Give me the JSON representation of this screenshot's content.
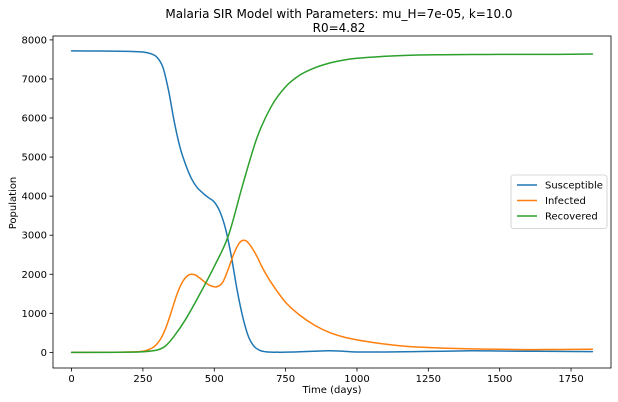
{
  "chart_data": {
    "type": "line",
    "title": "Malaria SIR Model with Parameters: mu_H=7e-05, k=10.0",
    "subtitle": "R0=4.82",
    "xlabel": "Time (days)",
    "ylabel": "Population",
    "xlim": [
      -65,
      1890
    ],
    "ylim": [
      -400,
      8100
    ],
    "xticks": [
      0,
      250,
      500,
      750,
      1000,
      1250,
      1500,
      1750
    ],
    "yticks": [
      0,
      1000,
      2000,
      3000,
      4000,
      5000,
      6000,
      7000,
      8000
    ],
    "grid": false,
    "legend_position": "center-right",
    "series": [
      {
        "name": "Susceptible",
        "color": "#1f77b4",
        "x": [
          0,
          100,
          200,
          250,
          280,
          300,
          320,
          340,
          360,
          380,
          400,
          420,
          440,
          460,
          480,
          500,
          520,
          540,
          560,
          580,
          600,
          620,
          640,
          660,
          680,
          700,
          720,
          750,
          800,
          850,
          900,
          950,
          1000,
          1100,
          1200,
          1300,
          1400,
          1500,
          1600,
          1700,
          1825
        ],
        "values": [
          7720,
          7715,
          7705,
          7690,
          7640,
          7550,
          7300,
          6700,
          5900,
          5250,
          4800,
          4450,
          4220,
          4080,
          3960,
          3850,
          3600,
          3150,
          2450,
          1600,
          900,
          400,
          150,
          50,
          15,
          5,
          5,
          5,
          15,
          30,
          40,
          30,
          10,
          10,
          20,
          30,
          40,
          35,
          30,
          25,
          20
        ]
      },
      {
        "name": "Infected",
        "color": "#ff7f0e",
        "x": [
          0,
          100,
          200,
          250,
          270,
          290,
          310,
          330,
          350,
          370,
          390,
          410,
          430,
          450,
          470,
          490,
          510,
          530,
          550,
          570,
          590,
          610,
          630,
          650,
          670,
          700,
          750,
          800,
          850,
          900,
          950,
          1000,
          1050,
          1100,
          1150,
          1200,
          1300,
          1400,
          1500,
          1600,
          1700,
          1825
        ],
        "values": [
          0,
          2,
          10,
          30,
          70,
          150,
          320,
          620,
          1050,
          1500,
          1820,
          1980,
          1990,
          1900,
          1780,
          1700,
          1680,
          1800,
          2150,
          2550,
          2820,
          2860,
          2700,
          2450,
          2150,
          1780,
          1280,
          950,
          700,
          520,
          400,
          320,
          260,
          210,
          170,
          140,
          110,
          90,
          80,
          70,
          75,
          80
        ]
      },
      {
        "name": "Recovered",
        "color": "#2ca02c",
        "x": [
          0,
          100,
          200,
          250,
          300,
          330,
          360,
          400,
          450,
          500,
          550,
          600,
          650,
          700,
          750,
          800,
          850,
          900,
          950,
          1000,
          1100,
          1200,
          1300,
          1400,
          1500,
          1600,
          1700,
          1825
        ],
        "values": [
          0,
          0,
          5,
          15,
          60,
          170,
          420,
          850,
          1500,
          2200,
          3000,
          4300,
          5500,
          6300,
          6800,
          7100,
          7280,
          7400,
          7480,
          7530,
          7580,
          7610,
          7620,
          7625,
          7630,
          7630,
          7630,
          7640
        ]
      }
    ]
  }
}
